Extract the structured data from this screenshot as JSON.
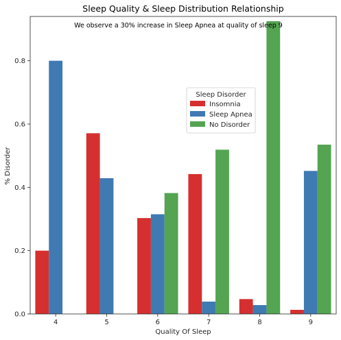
{
  "chart_data": {
    "type": "bar",
    "title": "Sleep Quality & Sleep Distribution Relationship",
    "annotation": "We observe a 30% increase in Sleep Apnea at quality of sleep 9",
    "xlabel": "Quality Of Sleep",
    "ylabel": "% Disorder",
    "categories": [
      "4",
      "5",
      "6",
      "7",
      "8",
      "9"
    ],
    "ylim": [
      0,
      0.94
    ],
    "yticks": [
      0.0,
      0.2,
      0.4,
      0.6,
      0.8
    ],
    "ytick_labels": [
      "0.0",
      "0.2",
      "0.4",
      "0.6",
      "0.8"
    ],
    "legend": {
      "title": "Sleep Disorder",
      "placement": "center-right"
    },
    "series": [
      {
        "name": "Insomnia",
        "color": "#d62f2f",
        "values": [
          0.2,
          0.571,
          0.303,
          0.442,
          0.047,
          0.013
        ]
      },
      {
        "name": "Sleep Apnea",
        "color": "#3f7ab3",
        "values": [
          0.8,
          0.429,
          0.315,
          0.039,
          0.028,
          0.452
        ]
      },
      {
        "name": "No Disorder",
        "color": "#54a452",
        "values": [
          0.0,
          0.0,
          0.382,
          0.519,
          0.925,
          0.535
        ]
      }
    ]
  }
}
